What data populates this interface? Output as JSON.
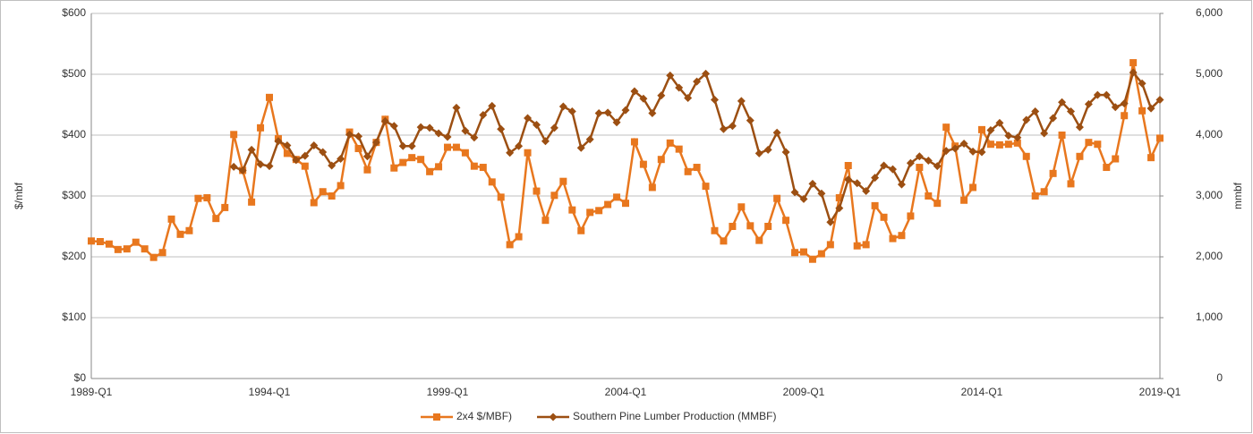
{
  "chart_data": {
    "type": "line",
    "y_label": "$/mbf",
    "y2_label": "mmbf",
    "categories": [
      "1989-Q1",
      null,
      null,
      null,
      null,
      null,
      null,
      null,
      null,
      null,
      null,
      null,
      null,
      null,
      null,
      null,
      null,
      null,
      null,
      null,
      "1994-Q1",
      null,
      null,
      null,
      null,
      null,
      null,
      null,
      null,
      null,
      null,
      null,
      null,
      null,
      null,
      null,
      null,
      null,
      null,
      null,
      "1999-Q1",
      null,
      null,
      null,
      null,
      null,
      null,
      null,
      null,
      null,
      null,
      null,
      null,
      null,
      null,
      null,
      null,
      null,
      null,
      null,
      "2004-Q1",
      null,
      null,
      null,
      null,
      null,
      null,
      null,
      null,
      null,
      null,
      null,
      null,
      null,
      null,
      null,
      null,
      null,
      null,
      null,
      "2009-Q1",
      null,
      null,
      null,
      null,
      null,
      null,
      null,
      null,
      null,
      null,
      null,
      null,
      null,
      null,
      null,
      null,
      null,
      null,
      null,
      "2014-Q1",
      null,
      null,
      null,
      null,
      null,
      null,
      null,
      null,
      null,
      null,
      null,
      null,
      null,
      null,
      null,
      null,
      null,
      null,
      null,
      "2019-Q1"
    ],
    "series": [
      {
        "name": "2x4 $/MBF)",
        "color": "#e8771e",
        "marker": "square",
        "values": [
          226,
          225,
          221,
          212,
          213,
          224,
          213,
          199,
          207,
          262,
          237,
          243,
          296,
          297,
          263,
          281,
          401,
          342,
          290,
          412,
          462,
          394,
          370,
          360,
          349,
          289,
          307,
          300,
          317,
          405,
          378,
          343,
          388,
          426,
          346,
          355,
          363,
          360,
          340,
          348,
          380,
          380,
          371,
          349,
          347,
          323,
          298,
          220,
          233,
          371,
          308,
          260,
          301,
          324,
          277,
          243,
          273,
          276,
          286,
          298,
          288,
          389,
          352,
          314,
          360,
          387,
          377,
          340,
          347,
          316,
          243,
          226,
          250,
          282,
          251,
          227,
          250,
          296,
          260,
          207,
          208,
          196,
          205,
          220,
          297,
          350,
          218,
          220,
          284,
          265,
          230,
          235,
          267,
          347,
          300,
          288,
          413,
          382,
          293,
          314,
          409,
          385,
          384,
          385,
          387,
          365,
          300,
          307,
          337,
          400,
          320,
          365,
          388,
          385,
          347,
          361,
          432,
          519,
          440,
          363,
          395
        ]
      },
      {
        "name": "Southern Pine Lumber Production (MMBF)",
        "color": "#9c4f12",
        "marker": "diamond",
        "axis": "y2",
        "values": [
          null,
          null,
          null,
          null,
          null,
          null,
          null,
          null,
          null,
          null,
          null,
          null,
          null,
          null,
          null,
          null,
          3480,
          3420,
          3760,
          3520,
          3490,
          3900,
          3830,
          3590,
          3660,
          3830,
          3720,
          3500,
          3610,
          4010,
          3980,
          3650,
          3880,
          4230,
          4150,
          3820,
          3820,
          4130,
          4120,
          4030,
          3970,
          4450,
          4070,
          3960,
          4330,
          4480,
          4100,
          3710,
          3820,
          4280,
          4170,
          3900,
          4120,
          4470,
          4390,
          3790,
          3930,
          4360,
          4370,
          4210,
          4410,
          4720,
          4600,
          4360,
          4650,
          4980,
          4780,
          4610,
          4880,
          5010,
          4580,
          4100,
          4150,
          4560,
          4240,
          3700,
          3760,
          4040,
          3720,
          3060,
          2950,
          3200,
          3040,
          2570,
          2800,
          3270,
          3210,
          3080,
          3300,
          3500,
          3440,
          3190,
          3540,
          3650,
          3580,
          3490,
          3740,
          3780,
          3860,
          3730,
          3720,
          4080,
          4200,
          3990,
          3960,
          4250,
          4390,
          4030,
          4280,
          4540,
          4390,
          4130,
          4510,
          4660,
          4660,
          4460,
          4520,
          5030,
          4850,
          4440,
          4580
        ]
      }
    ],
    "ylim": [
      0,
      600
    ],
    "yticks": [
      {
        "value": 0,
        "label": "$0"
      },
      {
        "value": 100,
        "label": "$100"
      },
      {
        "value": 200,
        "label": "$200"
      },
      {
        "value": 300,
        "label": "$300"
      },
      {
        "value": 400,
        "label": "$400"
      },
      {
        "value": 500,
        "label": "$500"
      },
      {
        "value": 600,
        "label": "$600"
      }
    ],
    "y2lim": [
      0,
      6000
    ],
    "y2ticks": [
      0,
      {
        "value": 1000,
        "label": "1,000"
      },
      {
        "value": 2000,
        "label": "2,000"
      },
      {
        "value": 3000,
        "label": "3,000"
      },
      {
        "value": 4000,
        "label": "4,000"
      },
      {
        "value": 5000,
        "label": "5,000"
      },
      {
        "value": 6000,
        "label": "6,000"
      }
    ],
    "grid": true,
    "legend": "bottom"
  }
}
